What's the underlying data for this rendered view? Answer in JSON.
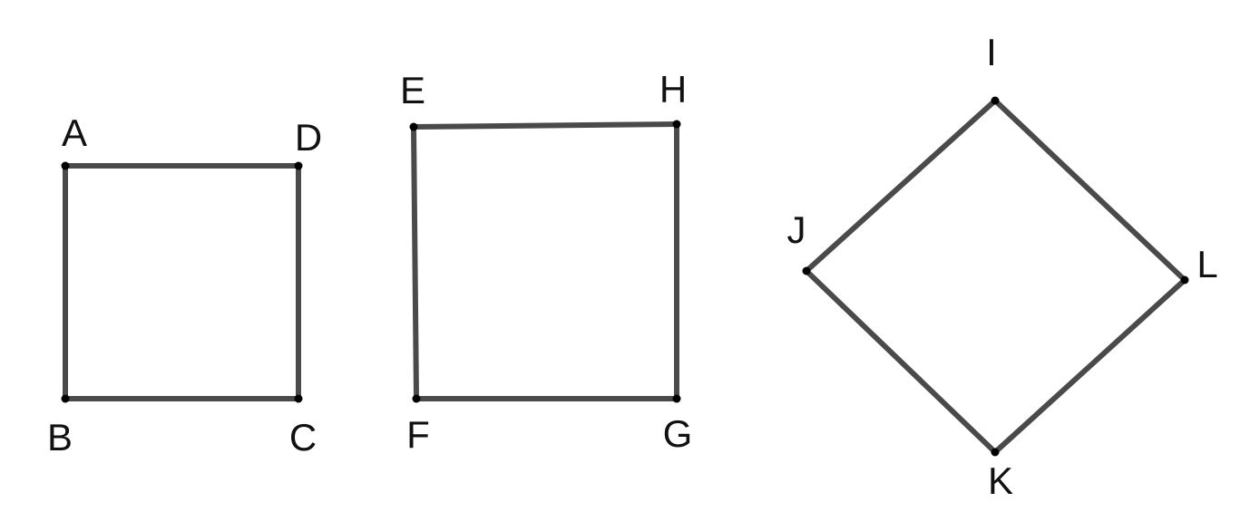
{
  "shapes": [
    {
      "id": "square-abcd",
      "vertices": [
        {
          "name": "A",
          "label": "A"
        },
        {
          "name": "D",
          "label": "D"
        },
        {
          "name": "C",
          "label": "C"
        },
        {
          "name": "B",
          "label": "B"
        }
      ]
    },
    {
      "id": "quad-efgh",
      "vertices": [
        {
          "name": "E",
          "label": "E"
        },
        {
          "name": "H",
          "label": "H"
        },
        {
          "name": "G",
          "label": "G"
        },
        {
          "name": "F",
          "label": "F"
        }
      ]
    },
    {
      "id": "rhombus-ijkl",
      "vertices": [
        {
          "name": "I",
          "label": "I"
        },
        {
          "name": "L",
          "label": "L"
        },
        {
          "name": "K",
          "label": "K"
        },
        {
          "name": "J",
          "label": "J"
        }
      ]
    }
  ],
  "colors": {
    "edge": "#4a4a4a",
    "vertex": "#000000",
    "label": "#111111",
    "background": "#ffffff"
  }
}
